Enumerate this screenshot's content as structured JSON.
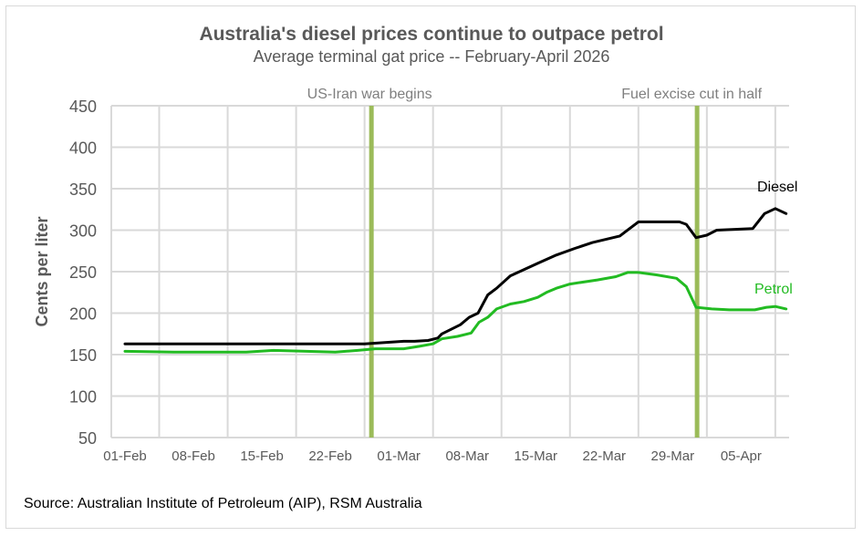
{
  "chart_data": {
    "type": "line",
    "title": "Australia's diesel prices continue to outpace petrol",
    "subtitle": "Average terminal gat price -- February-April 2026",
    "xlabel": "",
    "ylabel": "Cents per liter",
    "source": "Source: Australian Institute of Petroleum (AIP), RSM Australia",
    "ylim": [
      50,
      450
    ],
    "yticks": [
      50,
      100,
      150,
      200,
      250,
      300,
      350,
      400,
      450
    ],
    "xticks": [
      "01-Feb",
      "08-Feb",
      "15-Feb",
      "22-Feb",
      "01-Mar",
      "08-Mar",
      "15-Mar",
      "22-Mar",
      "29-Mar",
      "05-Apr"
    ],
    "x_unit": "days since 01-Feb-2026",
    "xlim": [
      0,
      68
    ],
    "grid": true,
    "annotations": [
      {
        "label": "US-Iran war begins",
        "day": 25.2
      },
      {
        "label": "Fuel excise cut in half",
        "day": 58.5
      }
    ],
    "series": [
      {
        "name": "Diesel",
        "color": "#000000",
        "x": [
          0,
          10,
          20,
          24.5,
          28.5,
          29.6,
          31.0,
          32.0,
          32.4,
          34.3,
          35.2,
          36.1,
          37.1,
          38.0,
          39.4,
          42.2,
          44.1,
          46.0,
          47.8,
          50.6,
          52.5,
          56.7,
          57.4,
          58.4,
          59.5,
          60.5,
          64.2,
          65.4,
          66.5,
          67.6
        ],
        "values": [
          163,
          163,
          163,
          163,
          166,
          166,
          167,
          170,
          175,
          186,
          195,
          200,
          222,
          230,
          245,
          260,
          270,
          278,
          285,
          293,
          310,
          310,
          307,
          291,
          294,
          300,
          302,
          320,
          326,
          320
        ]
      },
      {
        "name": "Petrol",
        "color": "#22bb22",
        "x": [
          0,
          5,
          12.4,
          15.2,
          21.5,
          23.8,
          25.6,
          28.5,
          30.1,
          31.5,
          32.4,
          34.0,
          35.4,
          36.2,
          37.1,
          38.0,
          39.4,
          40.8,
          42.2,
          43.1,
          44.1,
          45.5,
          48.3,
          50.2,
          51.4,
          52.5,
          54.4,
          56.4,
          57.4,
          58.4,
          60.0,
          61.8,
          64.4,
          65.6,
          66.5,
          67.6
        ],
        "values": [
          154,
          153,
          153,
          155,
          153,
          155,
          157,
          157,
          160,
          163,
          169,
          172,
          176,
          189,
          195,
          205,
          211,
          214,
          219,
          225,
          230,
          235,
          240,
          244,
          249,
          249,
          246,
          242,
          232,
          207,
          205,
          204,
          204,
          207,
          208,
          205
        ]
      }
    ],
    "series_labels": [
      {
        "name": "Diesel",
        "text": "Diesel"
      },
      {
        "name": "Petrol",
        "text": "Petrol"
      }
    ]
  }
}
